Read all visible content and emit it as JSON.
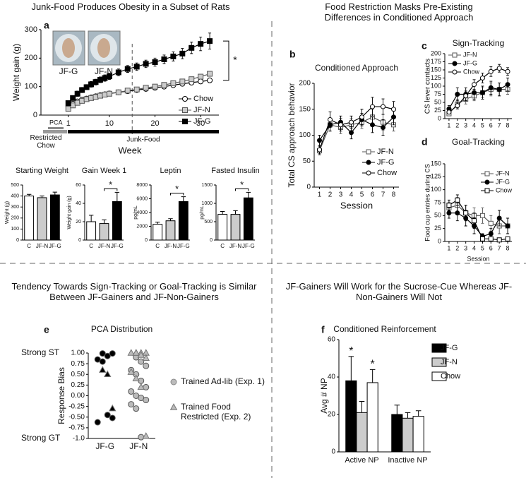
{
  "chart_data": [
    {
      "type": "line",
      "panel": "a",
      "heading": "Junk-Food Produces Obesity in a Subset of Rats",
      "xlabel": "Week",
      "ylabel": "Weight gain (g)",
      "xlim": [
        -5,
        34
      ],
      "xticks": [
        1,
        10,
        20,
        30
      ],
      "ylim": [
        0,
        300
      ],
      "yticks": [
        0,
        100,
        200,
        300
      ],
      "x": [
        1,
        2,
        3,
        4,
        5,
        6,
        7,
        8,
        9,
        10,
        12,
        14,
        16,
        18,
        20,
        22,
        24,
        26,
        28,
        30,
        32
      ],
      "series": [
        {
          "name": "Chow",
          "color": "#000000",
          "fill": "#ffffff",
          "marker": "circle",
          "values": [
            30,
            40,
            48,
            54,
            58,
            62,
            66,
            70,
            73,
            76,
            80,
            84,
            88,
            92,
            96,
            100,
            105,
            110,
            114,
            118,
            122
          ],
          "errors": [
            5,
            5,
            5,
            5,
            5,
            5,
            5,
            5,
            5,
            5,
            6,
            6,
            6,
            6,
            6,
            6,
            7,
            7,
            7,
            7,
            8
          ]
        },
        {
          "name": "JF-N",
          "color": "#555555",
          "fill": "#cccccc",
          "marker": "square",
          "values": [
            22,
            34,
            43,
            50,
            56,
            60,
            64,
            68,
            72,
            75,
            80,
            86,
            90,
            96,
            100,
            106,
            112,
            118,
            126,
            135,
            145
          ],
          "errors": [
            4,
            5,
            5,
            5,
            5,
            5,
            5,
            5,
            5,
            5,
            6,
            6,
            6,
            6,
            6,
            6,
            7,
            7,
            7,
            7,
            8
          ]
        },
        {
          "name": "JF-G",
          "color": "#000000",
          "fill": "#000000",
          "marker": "square",
          "values": [
            42,
            60,
            75,
            88,
            98,
            108,
            116,
            124,
            130,
            136,
            150,
            162,
            170,
            180,
            186,
            196,
            206,
            216,
            236,
            250,
            260
          ],
          "errors": [
            8,
            8,
            9,
            9,
            9,
            10,
            10,
            10,
            11,
            11,
            12,
            12,
            13,
            13,
            14,
            15,
            16,
            18,
            20,
            24,
            28
          ]
        }
      ],
      "divider_x": 15,
      "photos": [
        "JF-G",
        "JF-N"
      ],
      "phases": [
        "PCA",
        "Restricted Chow",
        "Junk-Food"
      ],
      "significance": "*"
    },
    {
      "type": "bar",
      "title": "Starting Weight",
      "ylabel": "Weight (g)",
      "categories": [
        "C",
        "JF-N",
        "JF-G"
      ],
      "values": [
        400,
        385,
        410
      ],
      "errors": [
        15,
        15,
        25
      ],
      "colors": [
        "#ffffff",
        "#cccccc",
        "#000000"
      ],
      "ylim": [
        0,
        500
      ],
      "yticks": [
        0,
        100,
        200,
        300,
        400,
        500
      ]
    },
    {
      "type": "bar",
      "title": "Gain Week 1",
      "ylabel": "Weight gain (g)",
      "categories": [
        "C",
        "JF-N",
        "JF-G"
      ],
      "values": [
        20,
        18,
        42
      ],
      "errors": [
        7,
        4,
        10
      ],
      "colors": [
        "#ffffff",
        "#cccccc",
        "#000000"
      ],
      "ylim": [
        0,
        60
      ],
      "yticks": [
        0,
        20,
        40,
        60
      ],
      "significance": "*"
    },
    {
      "type": "bar",
      "title": "Leptin",
      "ylabel": "pg/mL",
      "categories": [
        "C",
        "JF-N",
        "JF-G"
      ],
      "values": [
        2300,
        2800,
        5600
      ],
      "errors": [
        300,
        300,
        700
      ],
      "colors": [
        "#ffffff",
        "#cccccc",
        "#000000"
      ],
      "ylim": [
        0,
        8000
      ],
      "yticks": [
        0,
        2000,
        4000,
        6000,
        8000
      ],
      "significance": "*"
    },
    {
      "type": "bar",
      "title": "Fasted Insulin",
      "ylabel": "pg/mL",
      "categories": [
        "C",
        "JF-N",
        "JF-G"
      ],
      "values": [
        700,
        700,
        1150
      ],
      "errors": [
        80,
        100,
        150
      ],
      "colors": [
        "#ffffff",
        "#cccccc",
        "#000000"
      ],
      "ylim": [
        0,
        1500
      ],
      "yticks": [
        0,
        500,
        1000,
        1500
      ],
      "significance": "*"
    },
    {
      "type": "line",
      "panel": "b",
      "heading": "Food Restriction Masks Pre-Existing Differences in Conditioned Approach",
      "title": "Conditioned Approach",
      "xlabel": "Session",
      "ylabel": "Total CS approach behavior",
      "x": [
        1,
        2,
        3,
        4,
        5,
        6,
        7,
        8
      ],
      "xlim": [
        0.5,
        8.5
      ],
      "xticks": [
        1,
        2,
        3,
        4,
        5,
        6,
        7,
        8
      ],
      "ylim": [
        0,
        200
      ],
      "yticks": [
        0,
        50,
        100,
        150,
        200
      ],
      "series": [
        {
          "name": "JF-N",
          "color": "#555555",
          "fill": "#ffffff",
          "marker": "square",
          "values": [
            70,
            120,
            115,
            120,
            125,
            135,
            125,
            120
          ],
          "errors": [
            8,
            12,
            12,
            12,
            12,
            15,
            15,
            12
          ]
        },
        {
          "name": "JF-G",
          "color": "#000000",
          "fill": "#000000",
          "marker": "circle",
          "values": [
            90,
            120,
            125,
            105,
            130,
            120,
            115,
            135
          ],
          "errors": [
            10,
            12,
            12,
            12,
            12,
            15,
            15,
            15
          ]
        },
        {
          "name": "Chow",
          "color": "#000000",
          "fill": "#ffffff",
          "marker": "circle",
          "values": [
            72,
            130,
            120,
            125,
            135,
            155,
            155,
            150
          ],
          "errors": [
            8,
            15,
            12,
            12,
            15,
            18,
            15,
            15
          ]
        }
      ]
    },
    {
      "type": "line",
      "panel": "c",
      "title": "Sign-Tracking",
      "ylabel": "CS lever contacts",
      "x": [
        1,
        2,
        3,
        4,
        5,
        6,
        7,
        8
      ],
      "xlim": [
        0.5,
        8.5
      ],
      "xticks": [
        1,
        2,
        3,
        4,
        5,
        6,
        7,
        8
      ],
      "ylim": [
        0,
        200
      ],
      "yticks": [
        0,
        25,
        50,
        75,
        100,
        125,
        150,
        175,
        200
      ],
      "series": [
        {
          "name": "JF-N",
          "color": "#555555",
          "fill": "#ffffff",
          "marker": "square",
          "values": [
            15,
            45,
            60,
            70,
            80,
            90,
            90,
            90
          ],
          "errors": [
            5,
            15,
            15,
            15,
            15,
            20,
            20,
            15
          ]
        },
        {
          "name": "JF-G",
          "color": "#000000",
          "fill": "#000000",
          "marker": "circle",
          "values": [
            30,
            75,
            75,
            80,
            80,
            95,
            90,
            105
          ],
          "errors": [
            10,
            20,
            20,
            20,
            20,
            20,
            20,
            20
          ]
        },
        {
          "name": "Chow",
          "color": "#000000",
          "fill": "#ffffff",
          "marker": "circle",
          "values": [
            20,
            40,
            70,
            105,
            125,
            145,
            155,
            145
          ],
          "errors": [
            5,
            10,
            15,
            15,
            15,
            15,
            12,
            12
          ]
        }
      ]
    },
    {
      "type": "line",
      "panel": "d",
      "title": "Goal-Tracking",
      "xlabel": "Session",
      "ylabel": "Food cup entries during CS",
      "x": [
        1,
        2,
        3,
        4,
        5,
        6,
        7,
        8
      ],
      "xlim": [
        0.5,
        8.5
      ],
      "xticks": [
        1,
        2,
        3,
        4,
        5,
        6,
        7,
        8
      ],
      "ylim": [
        0,
        150
      ],
      "yticks": [
        0,
        25,
        50,
        75,
        100,
        125,
        150
      ],
      "series": [
        {
          "name": "JF-N",
          "color": "#555555",
          "fill": "#ffffff",
          "marker": "square",
          "values": [
            65,
            70,
            55,
            50,
            50,
            35,
            30,
            30
          ],
          "errors": [
            10,
            15,
            15,
            15,
            15,
            15,
            15,
            15
          ]
        },
        {
          "name": "JF-G",
          "color": "#000000",
          "fill": "#000000",
          "marker": "circle",
          "values": [
            55,
            55,
            45,
            30,
            10,
            15,
            45,
            30
          ],
          "errors": [
            10,
            15,
            15,
            15,
            5,
            10,
            15,
            15
          ]
        },
        {
          "name": "Chow",
          "color": "#000000",
          "fill": "#ffffff",
          "marker": "square",
          "values": [
            70,
            80,
            55,
            40,
            5,
            5,
            3,
            5
          ],
          "errors": [
            10,
            10,
            15,
            15,
            3,
            3,
            3,
            3
          ]
        }
      ]
    },
    {
      "type": "scatter",
      "panel": "e",
      "heading": "Tendency Towards Sign-Tracking or Goal-Tracking is Similar Between JF-Gainers and JF-Non-Gainers",
      "title": "PCA Distribution",
      "ylabel": "Response Bias",
      "categories": [
        "JF-G",
        "JF-N"
      ],
      "category_colors": [
        "#000000",
        "#bbbbbb"
      ],
      "ylim": [
        -1,
        1
      ],
      "yticks": [
        {
          "value": -1,
          "label": "-1.0"
        },
        {
          "value": -0.75,
          "label": "-0.75"
        },
        {
          "value": -0.5,
          "label": "-0.50"
        },
        {
          "value": -0.25,
          "label": "-0.25"
        },
        {
          "value": 0,
          "label": "0.00"
        },
        {
          "value": 0.25,
          "label": "0.25"
        },
        {
          "value": 0.5,
          "label": "0.50"
        },
        {
          "value": 0.75,
          "label": "0.75"
        },
        {
          "value": 1,
          "label": "1.00"
        }
      ],
      "annotations": [
        {
          "text": "Strong ST",
          "y": 1
        },
        {
          "text": "Strong GT",
          "y": -1
        }
      ],
      "series": [
        {
          "name": "Trained Ad-lib (Exp. 1)",
          "marker": "circle",
          "color": "#bbbbbb",
          "x": [
            "JF-G",
            "JF-G",
            "JF-G",
            "JF-G",
            "JF-G",
            "JF-G",
            "JF-G",
            "JF-G",
            "JF-N",
            "JF-N",
            "JF-N",
            "JF-N",
            "JF-N",
            "JF-N",
            "JF-N",
            "JF-N",
            "JF-N",
            "JF-N",
            "JF-N",
            "JF-N",
            "JF-N",
            "JF-N"
          ],
          "values": [
            0.99,
            0.93,
            0.99,
            0.85,
            0.8,
            -0.45,
            -0.52,
            -0.62,
            0.9,
            0.8,
            0.7,
            0.6,
            0.5,
            0.35,
            0.2,
            0.1,
            0,
            -0.05,
            -0.1,
            -0.2,
            -0.3,
            -0.97
          ]
        },
        {
          "name": "Trained Food Restricted (Exp. 2)",
          "marker": "triangle",
          "color": "#bbbbbb",
          "x": [
            "JF-G",
            "JF-G",
            "JF-G",
            "JF-N",
            "JF-N",
            "JF-N",
            "JF-N",
            "JF-N",
            "JF-N",
            "JF-N",
            "JF-N",
            "JF-N",
            "JF-N",
            "JF-N"
          ],
          "values": [
            0.6,
            0.5,
            -0.3,
            1,
            1,
            1,
            1,
            1,
            0.95,
            0.88,
            0.55,
            0.4,
            0.2,
            -0.95
          ]
        }
      ]
    },
    {
      "type": "bar",
      "panel": "f",
      "heading": "JF-Gainers Will Work for the Sucrose-Cue Whereas JF-Non-Gainers Will Not",
      "title": "Conditioned Reinforcement",
      "ylabel": "Avg # NP",
      "categories": [
        "Active NP",
        "Inactive NP"
      ],
      "ylim": [
        0,
        60
      ],
      "yticks": [
        0,
        20,
        40,
        60
      ],
      "series": [
        {
          "name": "JF-G",
          "color": "#000000",
          "values": [
            38,
            20
          ],
          "errors": [
            13,
            5
          ],
          "marks": [
            "*",
            null
          ]
        },
        {
          "name": "JF-N",
          "color": "#cccccc",
          "values": [
            21,
            18
          ],
          "errors": [
            6,
            3
          ]
        },
        {
          "name": "Chow",
          "color": "#ffffff",
          "values": [
            37,
            19
          ],
          "errors": [
            7,
            3
          ],
          "marks": [
            "*",
            null
          ]
        }
      ]
    }
  ]
}
